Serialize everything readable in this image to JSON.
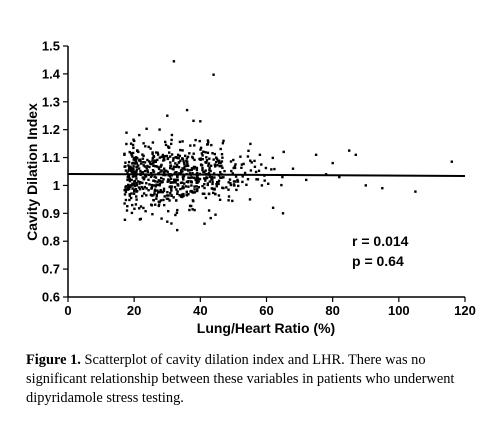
{
  "chart_data": {
    "type": "scatter",
    "xlabel": "Lung/Heart Ratio (%)",
    "ylabel": "Cavity Dilation Index",
    "xlim": [
      0,
      120
    ],
    "ylim": [
      0.6,
      1.5
    ],
    "x_ticks": [
      "0",
      "20",
      "40",
      "60",
      "80",
      "100",
      "120"
    ],
    "y_ticks": [
      "0.6",
      "0.7",
      "0.8",
      "0.9",
      "1",
      "1.1",
      "1.2",
      "1.3",
      "1.4",
      "1.5"
    ],
    "regression_line": {
      "x": [
        0,
        120
      ],
      "y": [
        1.041,
        1.034
      ]
    },
    "annotations": [
      "r = 0.014",
      "p = 0.64"
    ],
    "outlier_points": [
      {
        "x": 32,
        "y": 1.445
      },
      {
        "x": 44,
        "y": 1.397
      },
      {
        "x": 116,
        "y": 1.085
      },
      {
        "x": 105,
        "y": 0.978
      },
      {
        "x": 85,
        "y": 1.125
      },
      {
        "x": 87,
        "y": 1.11
      },
      {
        "x": 95,
        "y": 0.99
      },
      {
        "x": 90,
        "y": 1.0
      },
      {
        "x": 65,
        "y": 0.9
      },
      {
        "x": 75,
        "y": 1.11
      },
      {
        "x": 80,
        "y": 1.08
      },
      {
        "x": 33,
        "y": 0.84
      },
      {
        "x": 30,
        "y": 0.87
      },
      {
        "x": 22,
        "y": 0.88
      },
      {
        "x": 36,
        "y": 1.27
      },
      {
        "x": 30,
        "y": 1.25
      },
      {
        "x": 40,
        "y": 1.23
      },
      {
        "x": 47,
        "y": 1.16
      },
      {
        "x": 58,
        "y": 1.11
      },
      {
        "x": 62,
        "y": 0.92
      },
      {
        "x": 55,
        "y": 0.95
      },
      {
        "x": 18,
        "y": 1.02
      },
      {
        "x": 19,
        "y": 1.0
      },
      {
        "x": 68,
        "y": 1.06
      },
      {
        "x": 72,
        "y": 1.02
      },
      {
        "x": 78,
        "y": 1.04
      },
      {
        "x": 82,
        "y": 1.03
      }
    ],
    "cluster": {
      "n": 700,
      "x_center": 33,
      "x_spread": 9,
      "y_center": 1.04,
      "y_spread": 0.06,
      "seed": 7
    }
  },
  "caption": {
    "label": "Figure 1.",
    "text": " Scatterplot of cavity dilation index and LHR. There was no significant relationship between these variables in patients who underwent dipyridamole stress testing."
  }
}
